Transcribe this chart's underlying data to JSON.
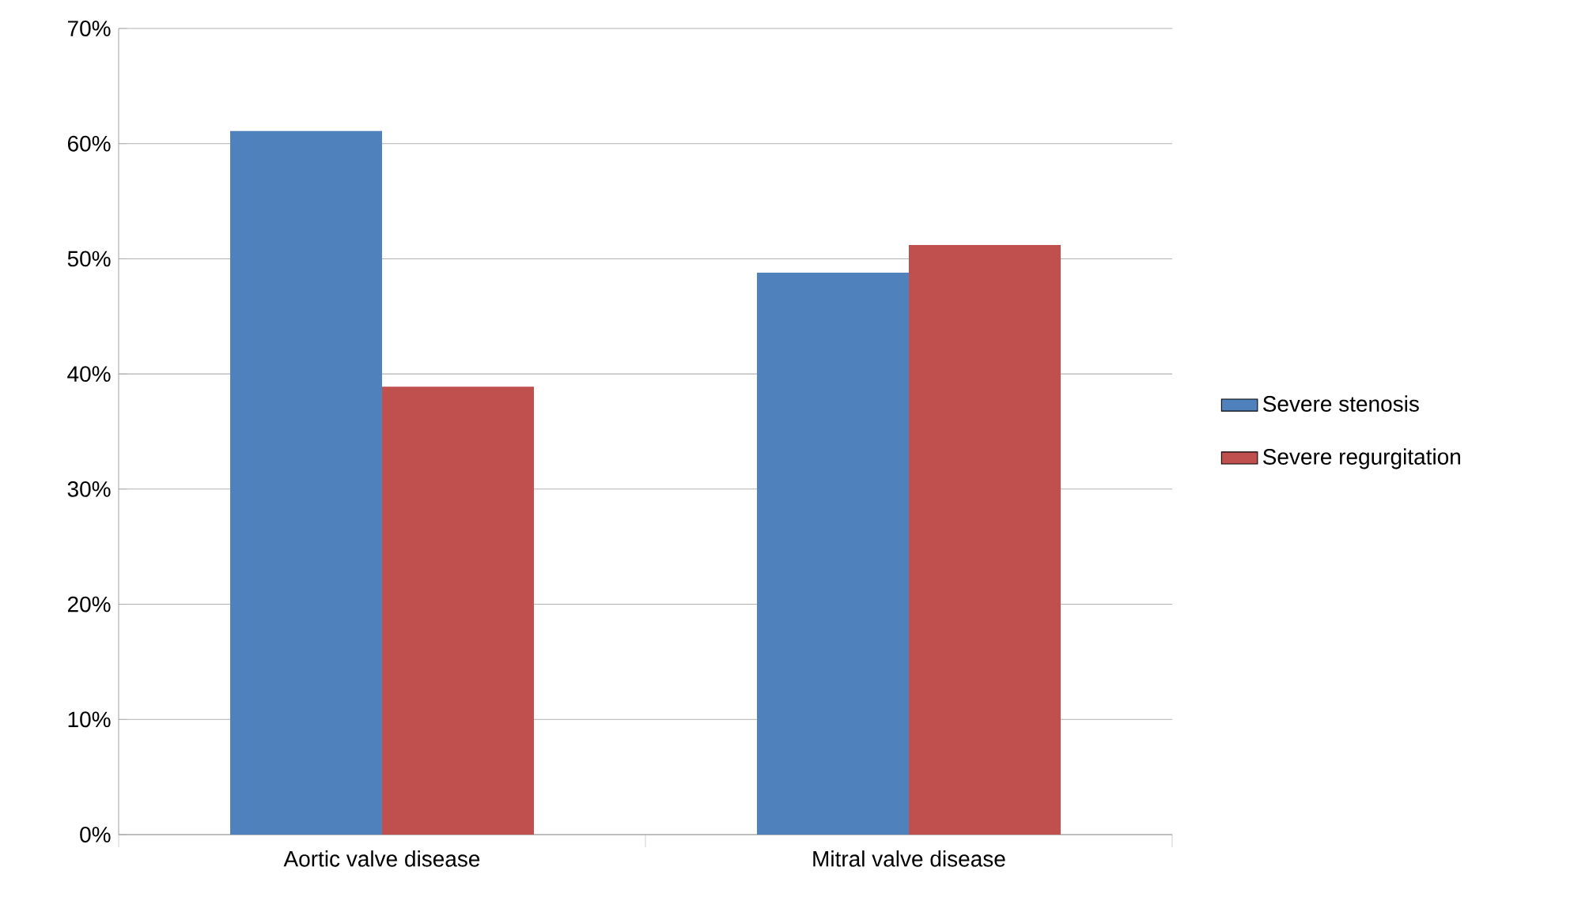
{
  "chart_data": {
    "type": "bar",
    "categories": [
      "Aortic valve disease",
      "Mitral valve disease"
    ],
    "series": [
      {
        "name": "Severe stenosis",
        "color": "#4f81bd",
        "values": [
          61.1,
          48.8
        ]
      },
      {
        "name": "Severe regurgitation",
        "color": "#c0504d",
        "values": [
          38.9,
          51.2
        ]
      }
    ],
    "ylim": [
      0,
      70
    ],
    "yticks": [
      {
        "value": 0,
        "label": "0%"
      },
      {
        "value": 10,
        "label": "10%"
      },
      {
        "value": 20,
        "label": "20%"
      },
      {
        "value": 30,
        "label": "30%"
      },
      {
        "value": 40,
        "label": "40%"
      },
      {
        "value": 50,
        "label": "50%"
      },
      {
        "value": 60,
        "label": "60%"
      },
      {
        "value": 70,
        "label": "70%"
      }
    ],
    "grid": "y",
    "legend": "right"
  }
}
